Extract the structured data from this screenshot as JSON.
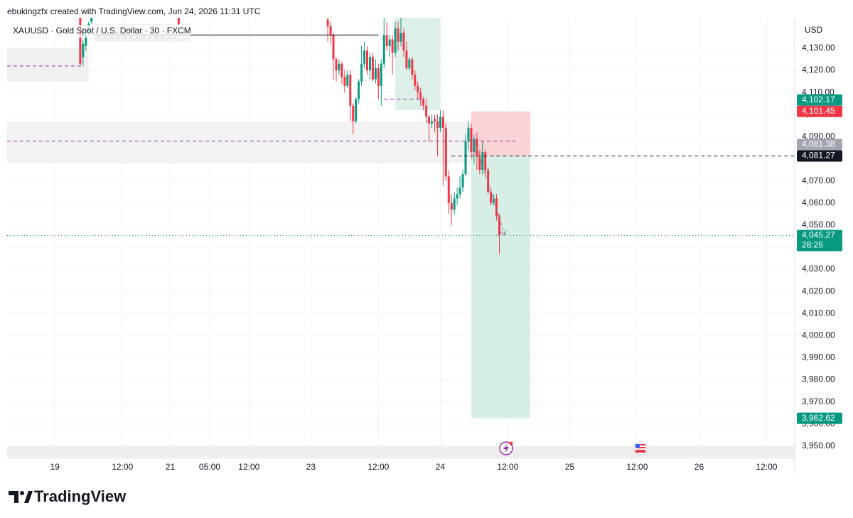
{
  "header": "ebukingzfx created with TradingView.com, Jun 24, 2026 11:31 UTC",
  "brand": "TradingView",
  "chart_data": {
    "type": "candlestick",
    "title": "XAUUSD · Gold Spot / U.S. Dollar · 30 · FXCM",
    "y_axis_label": "USD",
    "up_color": "#089981",
    "down_color": "#f23645",
    "x": [
      26,
      27,
      28,
      29,
      30,
      61,
      114,
      115,
      116,
      117,
      118,
      119,
      120,
      121,
      122,
      123,
      124,
      125,
      126,
      127,
      128,
      129,
      130,
      131,
      132,
      133,
      134,
      135,
      136,
      137,
      138,
      139,
      140,
      141,
      142,
      143,
      144,
      145,
      146,
      147,
      148,
      149,
      150,
      151,
      152,
      153,
      154,
      155,
      156,
      157,
      158,
      159,
      160,
      161,
      162,
      163,
      164,
      165,
      166,
      167,
      168,
      169,
      170,
      171,
      172,
      173,
      174,
      175
    ],
    "open": [
      4144,
      4126,
      4131,
      4137,
      4142,
      4146,
      4143,
      4140,
      4136,
      4125,
      4120,
      4123,
      4117,
      4113,
      4118,
      4104,
      4097,
      4107,
      4115,
      4123,
      4129,
      4120,
      4126,
      4116,
      4121,
      4113,
      4123,
      4136,
      4131,
      4134,
      4128,
      4139,
      4133,
      4137,
      4129,
      4121,
      4125,
      4118,
      4113,
      4110,
      4107,
      4104,
      4099,
      4096,
      4098,
      4097,
      4094,
      4099,
      4094,
      4072,
      4060,
      4057,
      4062,
      4064,
      4067,
      4073,
      4088,
      4094,
      4083,
      4089,
      4081,
      4075,
      4083,
      4075,
      4065,
      4060,
      4062,
      4054
    ],
    "high": [
      4146,
      4134,
      4137,
      4142,
      4146,
      4147,
      4144,
      4142,
      4137,
      4126,
      4125,
      4124,
      4120,
      4120,
      4120,
      4105,
      4108,
      4116,
      4131,
      4133,
      4131,
      4128,
      4128,
      4125,
      4123,
      4125,
      4144,
      4142,
      4136,
      4136,
      4142,
      4142,
      4144,
      4139,
      4133,
      4126,
      4126,
      4120,
      4115,
      4112,
      4108,
      4107,
      4100,
      4100,
      4100,
      4100,
      4102,
      4102,
      4096,
      4075,
      4064,
      4065,
      4067,
      4072,
      4075,
      4091,
      4097,
      4096,
      4091,
      4092,
      4084,
      4088,
      4084,
      4076,
      4067,
      4064,
      4064,
      4055
    ],
    "low": [
      4122,
      4122,
      4129,
      4136,
      4141,
      4140,
      4133,
      4132,
      4116,
      4115,
      4118,
      4114,
      4110,
      4112,
      4097,
      4091,
      4096,
      4105,
      4113,
      4121,
      4118,
      4116,
      4115,
      4114,
      4107,
      4104,
      4121,
      4129,
      4126,
      4118,
      4126,
      4129,
      4131,
      4126,
      4120,
      4120,
      4116,
      4111,
      4107,
      4104,
      4102,
      4096,
      4088,
      4094,
      4092,
      4081,
      4092,
      4068,
      4070,
      4055,
      4050,
      4055,
      4059,
      4062,
      4065,
      4072,
      4084,
      4080,
      4078,
      4075,
      4073,
      4073,
      4072,
      4064,
      4059,
      4059,
      4052,
      4037
    ],
    "close": [
      4123,
      4132,
      4136,
      4141,
      4145,
      4141,
      4140,
      4136,
      4125,
      4120,
      4123,
      4117,
      4113,
      4118,
      4104,
      4097,
      4107,
      4115,
      4123,
      4129,
      4120,
      4126,
      4116,
      4121,
      4113,
      4123,
      4136,
      4131,
      4134,
      4128,
      4139,
      4133,
      4137,
      4129,
      4121,
      4125,
      4118,
      4113,
      4110,
      4107,
      4104,
      4099,
      4096,
      4097,
      4097,
      4094,
      4099,
      4094,
      4072,
      4060,
      4057,
      4062,
      4064,
      4067,
      4073,
      4088,
      4094,
      4083,
      4089,
      4081,
      4075,
      4083,
      4075,
      4065,
      4060,
      4062,
      4054,
      4045.27
    ],
    "xlim": [
      0,
      280
    ],
    "xticks": [
      {
        "value": 17,
        "label": "19"
      },
      {
        "value": 41,
        "label": "12:00"
      },
      {
        "value": 58,
        "label": "21"
      },
      {
        "value": 72,
        "label": "05:00"
      },
      {
        "value": 86,
        "label": "12:00"
      },
      {
        "value": 108,
        "label": "23"
      },
      {
        "value": 132,
        "label": "12:00"
      },
      {
        "value": 154,
        "label": "24"
      },
      {
        "value": 178,
        "label": "12:00"
      },
      {
        "value": 200,
        "label": "25"
      },
      {
        "value": 224,
        "label": "12:00"
      },
      {
        "value": 246,
        "label": "26"
      },
      {
        "value": 270,
        "label": "12:00"
      }
    ],
    "ylim": [
      3944.5,
      4143.8
    ],
    "yticks": [
      {
        "value": 3950,
        "label": "3,950.00"
      },
      {
        "value": 3960,
        "label": "3,960.00"
      },
      {
        "value": 3970,
        "label": "3,970.00"
      },
      {
        "value": 3980,
        "label": "3,980.00"
      },
      {
        "value": 3990,
        "label": "3,990.00"
      },
      {
        "value": 4000,
        "label": "4,000.00"
      },
      {
        "value": 4010,
        "label": "4,010.00"
      },
      {
        "value": 4020,
        "label": "4,020.00"
      },
      {
        "value": 4030,
        "label": "4,030.00"
      },
      {
        "value": 4040,
        "label": "4,040.00"
      },
      {
        "value": 4050,
        "label": "4,050.00"
      },
      {
        "value": 4060,
        "label": "4,060.00"
      },
      {
        "value": 4070,
        "label": "4,070.00"
      },
      {
        "value": 4080,
        "label": "4,080.00"
      },
      {
        "value": 4090,
        "label": "4,090.00"
      },
      {
        "value": 4100,
        "label": "4,100.00"
      },
      {
        "value": 4110,
        "label": "4,110.00"
      },
      {
        "value": 4120,
        "label": "4,120.00"
      },
      {
        "value": 4130,
        "label": "4,130.00"
      }
    ],
    "grid": true,
    "zones": [
      {
        "x0": 0,
        "x1": 29,
        "y0": 4115,
        "y1": 4130,
        "color": "#f0f0f0"
      },
      {
        "x0": 31,
        "x1": 65,
        "y0": 4133,
        "y1": 4141,
        "color": "#f0f0f0"
      },
      {
        "x0": 0,
        "x1": 181,
        "y0": 4078,
        "y1": 4097,
        "color": "#f2f2f2"
      },
      {
        "x0": 138,
        "x1": 154,
        "y0": 4102,
        "y1": 4144,
        "color": "#dcefe8"
      },
      {
        "x0": 0,
        "x1": 280,
        "y0": 3945,
        "y1": 3950,
        "color": "#eeeeee"
      }
    ],
    "lines": [
      {
        "price": 4122,
        "x0": 0,
        "x1": 27,
        "style": "dashed",
        "color": "#9c27b0"
      },
      {
        "price": 4088,
        "x0": 0,
        "x1": 181,
        "style": "dashed",
        "color": "#9c27b0"
      },
      {
        "price": 4136,
        "x0": 31,
        "x1": 132,
        "style": "solid",
        "color": "#131722"
      },
      {
        "price": 4135,
        "x0": 32,
        "x1": 60,
        "style": "dashed",
        "color": "#9c27b0"
      },
      {
        "price": 4107,
        "x0": 134,
        "x1": 148,
        "style": "dashed",
        "color": "#9c27b0"
      },
      {
        "price": 4081.27,
        "x0": 158,
        "x1": 280,
        "style": "dashed",
        "color": "#131722"
      },
      {
        "price": 4045.27,
        "x0": 0,
        "x1": 280,
        "style": "dotted",
        "color": "#089981"
      }
    ],
    "position": {
      "x0": 165,
      "x1": 186,
      "entry": 4081.27,
      "stop": 4101.45,
      "target": 3962.62,
      "stop_color": "#f9d4d7",
      "target_color": "#d7eee6"
    },
    "price_labels": [
      {
        "value": 4102.17,
        "label": "4,102.17",
        "color": "#089981"
      },
      {
        "value": 4101.45,
        "label": "4,101.45",
        "color": "#f23645"
      },
      {
        "value": 4081.38,
        "label": "4,081.38",
        "color": "#a3a6af"
      },
      {
        "value": 4081.27,
        "label": "4,081.27",
        "color": "#131722"
      },
      {
        "value": 4045.27,
        "label": "4,045.27",
        "color": "#089981",
        "countdown": "28:26"
      },
      {
        "value": 3962.62,
        "label": "3,962.62",
        "color": "#089981"
      }
    ]
  }
}
